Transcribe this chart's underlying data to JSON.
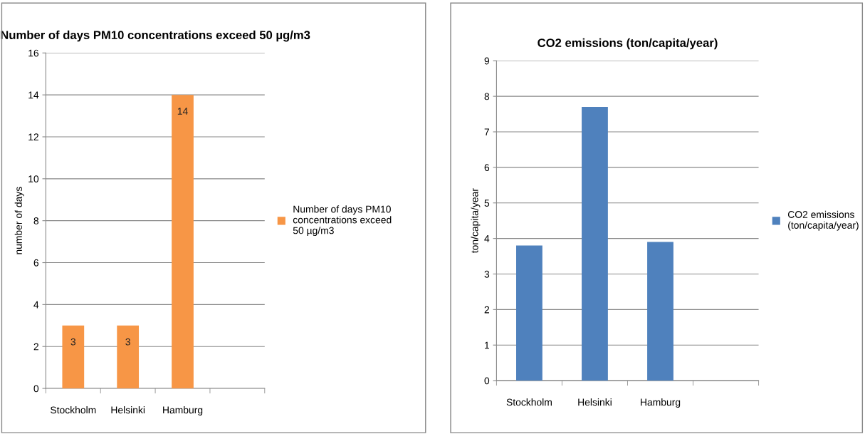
{
  "chart_data": [
    {
      "type": "bar",
      "title": "Number of days PM10 concentrations exceed 50 µg/m3",
      "ylabel": "number of days",
      "categories": [
        "Stockholm",
        "Helsinki",
        "Hamburg",
        null
      ],
      "series": [
        {
          "name": "Number of days PM10 concentrations exceed 50 µg/m3",
          "color": "#f79646",
          "values": [
            3,
            3,
            14,
            null
          ]
        }
      ],
      "ylim": [
        0,
        16
      ],
      "yticks": [
        0,
        2,
        4,
        6,
        8,
        10,
        12,
        14,
        16
      ],
      "grid": "y",
      "legend": "right",
      "data_labels": true
    },
    {
      "type": "bar",
      "title": "CO2 emissions (ton/capita/year)",
      "ylabel": "ton/capita/year",
      "categories": [
        "Stockholm",
        "Helsinki",
        "Hamburg",
        null
      ],
      "series": [
        {
          "name": "CO2 emissions (ton/capita/year)",
          "color": "#4f81bd",
          "values": [
            3.8,
            7.7,
            3.9,
            null
          ]
        }
      ],
      "ylim": [
        0,
        9
      ],
      "yticks": [
        0,
        1,
        2,
        3,
        4,
        5,
        6,
        7,
        8,
        9
      ],
      "grid": "y",
      "legend": "right"
    }
  ]
}
